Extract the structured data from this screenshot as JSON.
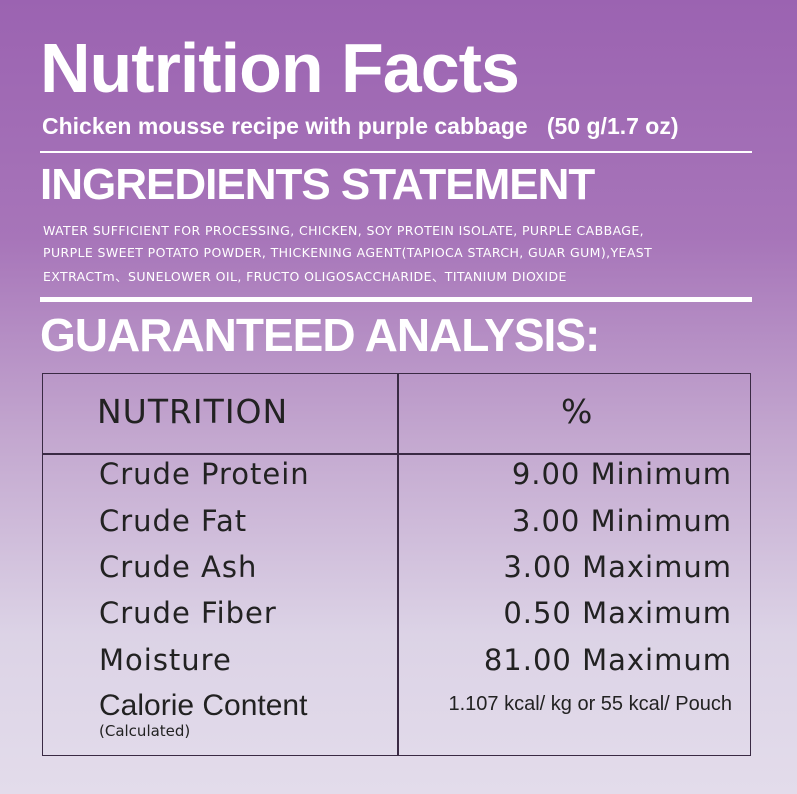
{
  "header": {
    "title": "Nutrition  Facts",
    "subtitle": "Chicken mousse recipe with purple cabbage   (50 g/1.7 oz)"
  },
  "ingredients": {
    "heading": "INGREDIENTS STATEMENT",
    "lines": [
      "WATER SUFFICIENT FOR PROCESSING, CHICKEN, SOY PROTEIN ISOLATE, PURPLE CABBAGE,",
      "PURPLE SWEET POTATO POWDER, THICKENING AGENT(TAPIOCA STARCH, GUAR GUM),YEAST",
      "EXTRACTm、SUNELOWER OIL, FRUCTO OLIGOSACCHARIDE、TITANIUM DIOXIDE"
    ]
  },
  "analysis": {
    "heading": "GUARANTEED ANALYSIS:",
    "table": {
      "header": [
        "NUTRITION",
        "%"
      ],
      "rows": [
        {
          "name": "Crude Protein",
          "value": "9.00 Minimum"
        },
        {
          "name": "Crude Fat",
          "value": "3.00 Minimum"
        },
        {
          "name": "Crude Ash",
          "value": "3.00 Maximum"
        },
        {
          "name": "Crude Fiber",
          "value": "0.50 Maximum"
        },
        {
          "name": "Moisture",
          "value": "81.00 Maximum"
        },
        {
          "name": "Calorie Content",
          "note": "(Calculated)",
          "value": "1.107 kcal/ kg or 55 kcal/ Pouch"
        }
      ]
    }
  }
}
